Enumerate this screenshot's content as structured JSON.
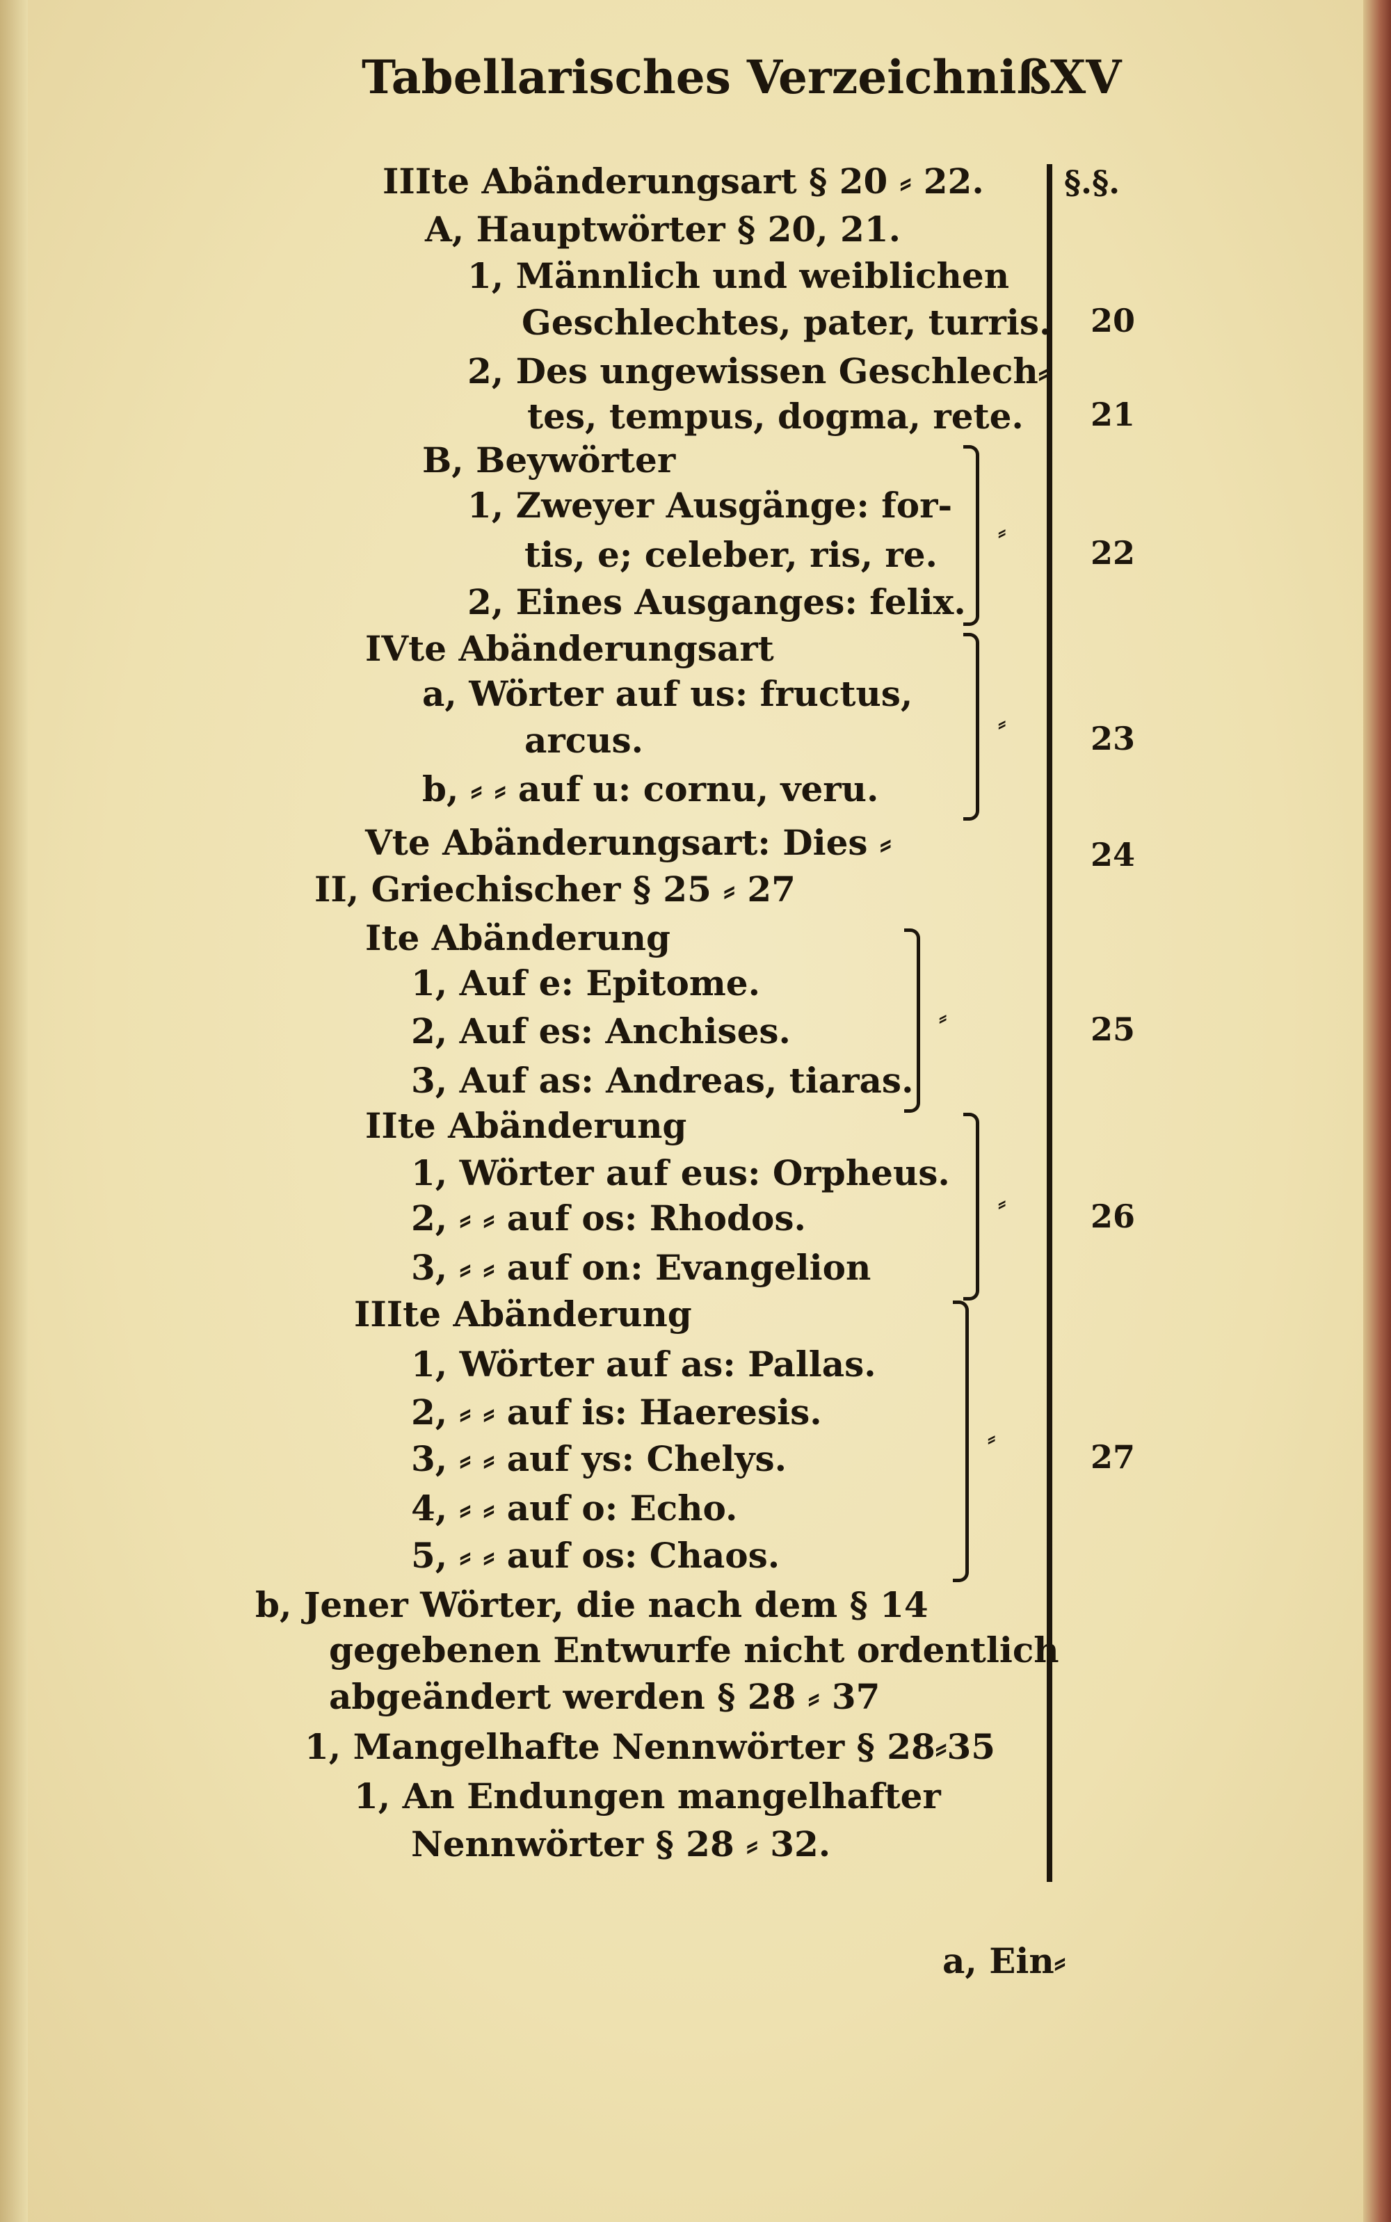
{
  "header": {
    "title": "Tabellarisches Verzeichniß",
    "page_number": "XV"
  },
  "column_heading": "§.§.",
  "lines": [
    "IIIte Abänderungsart § 20 ⸗ 22.",
    "A, Hauptwörter § 20, 21.",
    "1, Männlich und weiblichen",
    "Geschlechtes, pater, turris.",
    "2, Des ungewissen Geschlech⸗",
    "tes, tempus, dogma, rete.",
    "B, Beywörter",
    "1, Zweyer Ausgänge: for-",
    "tis, e; celeber, ris, re.",
    "2, Eines Ausganges: felix.",
    "IVte Abänderungsart",
    "a, Wörter auf us: fructus,",
    "arcus.",
    "b, ⸗ ⸗ auf u: cornu, veru.",
    "Vte Abänderungsart: Dies ⸗",
    "II, Griechischer § 25 ⸗ 27",
    "Ite Abänderung",
    "1, Auf e: Epitome.",
    "2, Auf es: Anchises.",
    "3, Auf as: Andreas, tiaras.",
    "IIte Abänderung",
    "1, Wörter auf eus: Orpheus.",
    "2, ⸗ ⸗ auf os: Rhodos.",
    "3, ⸗ ⸗ auf on: Evangelion",
    "IIIte Abänderung",
    "1, Wörter auf as: Pallas.",
    "2, ⸗ ⸗ auf is: Haeresis.",
    "3, ⸗ ⸗ auf ys: Chelys.",
    "4, ⸗ ⸗ auf o: Echo.",
    "5, ⸗ ⸗ auf os: Chaos.",
    "b, Jener Wörter, die nach dem § 14",
    "gegebenen Entwurfe nicht ordentlich",
    "abgeändert werden § 28 ⸗ 37",
    "1, Mangelhafte Nennwörter § 28⸗35",
    "1, An Endungen mangelhafter",
    "Nennwörter § 28 ⸗ 32."
  ],
  "section_numbers": [
    "20",
    "21",
    "22",
    "23",
    "24",
    "25",
    "26",
    "27"
  ],
  "bracket_mark": "⸗",
  "catchword": "a, Ein⸗"
}
